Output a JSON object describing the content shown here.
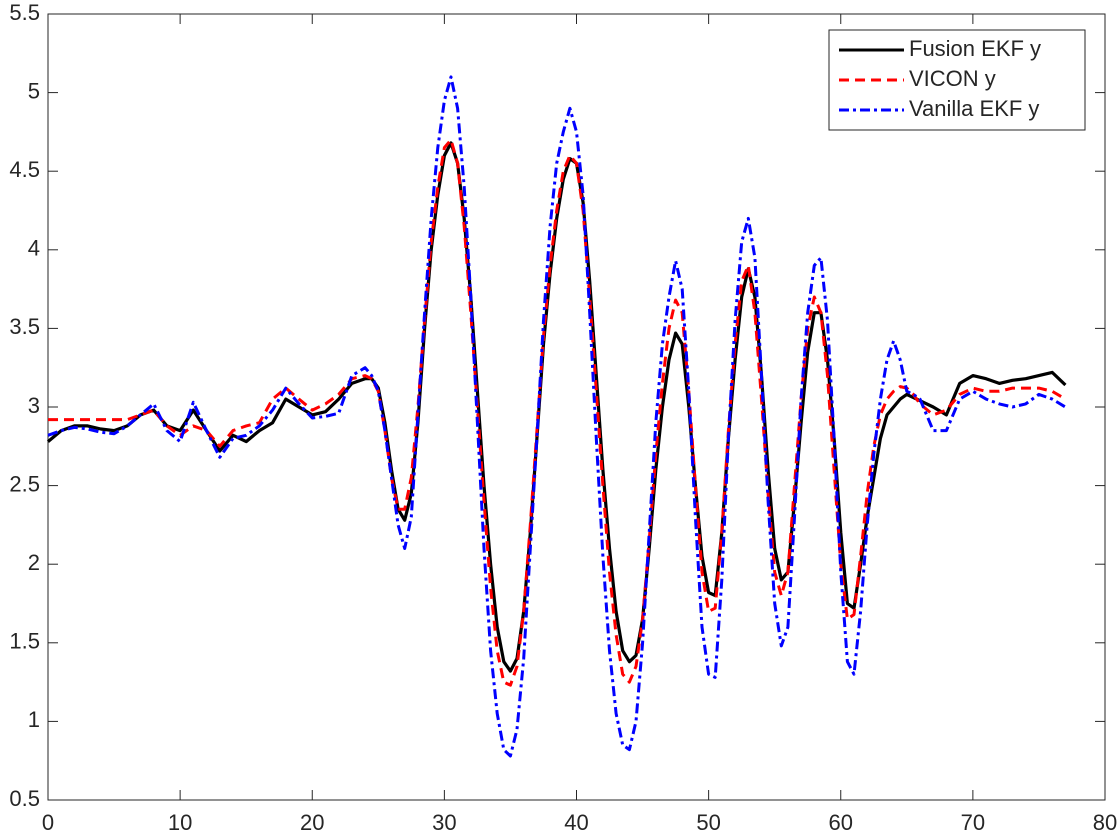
{
  "chart_data": {
    "type": "line",
    "x": [
      0,
      1,
      2,
      3,
      4,
      5,
      6,
      7,
      8,
      9,
      10,
      11,
      12,
      13,
      14,
      15,
      16,
      17,
      18,
      19,
      20,
      21,
      22,
      23,
      24,
      24.5,
      25,
      25.5,
      26,
      26.5,
      27,
      27.5,
      28,
      28.5,
      29,
      29.5,
      30,
      30.5,
      31,
      31.5,
      32,
      32.5,
      33,
      33.5,
      34,
      34.5,
      35,
      35.5,
      36,
      36.5,
      37,
      37.5,
      38,
      38.5,
      39,
      39.5,
      40,
      40.5,
      41,
      41.5,
      42,
      42.5,
      43,
      43.5,
      44,
      44.5,
      45,
      45.5,
      46,
      46.5,
      47,
      47.5,
      48,
      48.5,
      49,
      49.5,
      50,
      50.5,
      51,
      51.5,
      52,
      52.5,
      53,
      53.5,
      54,
      54.5,
      55,
      55.5,
      56,
      56.5,
      57,
      57.5,
      58,
      58.5,
      59,
      59.5,
      60,
      60.5,
      61,
      61.5,
      62,
      62.5,
      63,
      63.5,
      64,
      64.5,
      65,
      65.5,
      66,
      67,
      68,
      69,
      70,
      71,
      72,
      73,
      74,
      75,
      76,
      77
    ],
    "series": [
      {
        "name": "Fusion EKF y",
        "color": "#000000",
        "style": "solid",
        "values": [
          2.78,
          2.85,
          2.88,
          2.88,
          2.86,
          2.85,
          2.88,
          2.95,
          2.98,
          2.88,
          2.85,
          2.98,
          2.85,
          2.72,
          2.82,
          2.78,
          2.85,
          2.9,
          3.05,
          3.0,
          2.95,
          2.97,
          3.05,
          3.15,
          3.18,
          3.18,
          3.12,
          2.9,
          2.6,
          2.35,
          2.28,
          2.45,
          2.9,
          3.5,
          4.0,
          4.35,
          4.6,
          4.68,
          4.55,
          4.2,
          3.7,
          3.1,
          2.5,
          2.0,
          1.6,
          1.38,
          1.32,
          1.4,
          1.7,
          2.2,
          2.8,
          3.4,
          3.85,
          4.2,
          4.45,
          4.58,
          4.55,
          4.3,
          3.8,
          3.2,
          2.6,
          2.1,
          1.7,
          1.45,
          1.38,
          1.42,
          1.65,
          2.1,
          2.6,
          3.0,
          3.3,
          3.47,
          3.4,
          3.0,
          2.5,
          2.05,
          1.82,
          1.8,
          2.2,
          2.8,
          3.3,
          3.7,
          3.88,
          3.7,
          3.2,
          2.6,
          2.1,
          1.9,
          1.95,
          2.4,
          2.9,
          3.35,
          3.6,
          3.6,
          3.3,
          2.8,
          2.2,
          1.75,
          1.72,
          2.0,
          2.3,
          2.55,
          2.8,
          2.95,
          3.0,
          3.05,
          3.08,
          3.06,
          3.04,
          3.0,
          2.95,
          3.15,
          3.2,
          3.18,
          3.15,
          3.17,
          3.18,
          3.2,
          3.22,
          3.14
        ]
      },
      {
        "name": "VICON y",
        "color": "#ff0000",
        "style": "dashed",
        "values": [
          2.92,
          2.92,
          2.92,
          2.92,
          2.92,
          2.92,
          2.92,
          2.95,
          2.98,
          2.88,
          2.82,
          2.88,
          2.85,
          2.75,
          2.85,
          2.88,
          2.9,
          3.05,
          3.12,
          3.05,
          2.98,
          3.02,
          3.08,
          3.18,
          3.2,
          3.18,
          3.1,
          2.85,
          2.55,
          2.35,
          2.35,
          2.55,
          3.0,
          3.55,
          4.05,
          4.4,
          4.65,
          4.7,
          4.55,
          4.15,
          3.6,
          3.0,
          2.4,
          1.85,
          1.45,
          1.25,
          1.23,
          1.35,
          1.7,
          2.25,
          2.85,
          3.45,
          3.9,
          4.25,
          4.5,
          4.6,
          4.55,
          4.25,
          3.7,
          3.1,
          2.5,
          1.95,
          1.55,
          1.3,
          1.25,
          1.35,
          1.65,
          2.15,
          2.7,
          3.15,
          3.5,
          3.68,
          3.6,
          3.1,
          2.5,
          1.95,
          1.7,
          1.72,
          2.2,
          2.85,
          3.4,
          3.8,
          3.9,
          3.6,
          3.05,
          2.45,
          1.95,
          1.8,
          1.95,
          2.5,
          3.05,
          3.5,
          3.7,
          3.6,
          3.2,
          2.6,
          2.0,
          1.65,
          1.68,
          2.05,
          2.45,
          2.75,
          2.95,
          3.05,
          3.1,
          3.13,
          3.12,
          3.08,
          3.02,
          2.95,
          2.98,
          3.08,
          3.12,
          3.1,
          3.1,
          3.12,
          3.12,
          3.12,
          3.1,
          3.05
        ]
      },
      {
        "name": "Vanilla EKF y",
        "color": "#0000ff",
        "style": "dashdot",
        "values": [
          2.82,
          2.85,
          2.87,
          2.86,
          2.84,
          2.83,
          2.88,
          2.95,
          3.02,
          2.85,
          2.78,
          3.03,
          2.85,
          2.68,
          2.8,
          2.82,
          2.88,
          2.98,
          3.12,
          3.02,
          2.93,
          2.94,
          2.96,
          3.2,
          3.25,
          3.2,
          3.1,
          2.85,
          2.55,
          2.25,
          2.1,
          2.3,
          2.95,
          3.6,
          4.2,
          4.65,
          4.95,
          5.1,
          4.9,
          4.4,
          3.7,
          2.9,
          2.1,
          1.45,
          1.05,
          0.82,
          0.78,
          0.95,
          1.4,
          2.1,
          2.8,
          3.55,
          4.15,
          4.55,
          4.75,
          4.9,
          4.75,
          4.35,
          3.6,
          2.8,
          2.05,
          1.45,
          1.05,
          0.85,
          0.82,
          1.0,
          1.5,
          2.2,
          2.9,
          3.4,
          3.7,
          3.93,
          3.75,
          3.1,
          2.3,
          1.6,
          1.3,
          1.28,
          1.9,
          2.8,
          3.55,
          4.05,
          4.2,
          3.95,
          3.2,
          2.4,
          1.75,
          1.48,
          1.6,
          2.3,
          3.05,
          3.6,
          3.9,
          3.95,
          3.55,
          2.8,
          1.95,
          1.38,
          1.3,
          1.7,
          2.25,
          2.7,
          3.05,
          3.3,
          3.42,
          3.3,
          3.1,
          3.08,
          3.05,
          2.85,
          2.85,
          3.05,
          3.1,
          3.05,
          3.02,
          3.0,
          3.02,
          3.08,
          3.05,
          3.0
        ]
      }
    ],
    "xlim": [
      0,
      80
    ],
    "xticks": [
      0,
      10,
      20,
      30,
      40,
      50,
      60,
      70,
      80
    ],
    "ylim": [
      0.5,
      5.5
    ],
    "yticks": [
      0.5,
      1,
      1.5,
      2,
      2.5,
      3,
      3.5,
      4,
      4.5,
      5,
      5.5
    ],
    "legend": "top-right",
    "grid": false
  }
}
